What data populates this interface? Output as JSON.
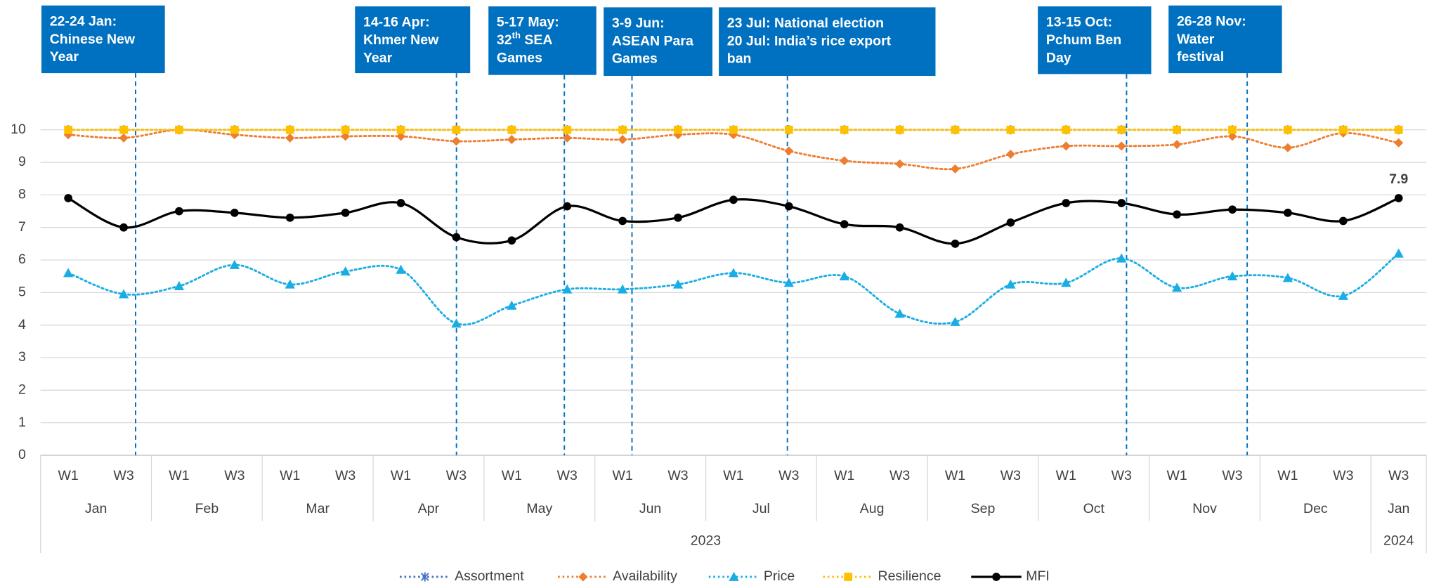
{
  "chart_data": {
    "type": "line",
    "categories": [
      [
        "W1",
        "Jan",
        "2023"
      ],
      [
        "W3",
        "Jan",
        "2023"
      ],
      [
        "W1",
        "Feb",
        "2023"
      ],
      [
        "W3",
        "Feb",
        "2023"
      ],
      [
        "W1",
        "Mar",
        "2023"
      ],
      [
        "W3",
        "Mar",
        "2023"
      ],
      [
        "W1",
        "Apr",
        "2023"
      ],
      [
        "W3",
        "Apr",
        "2023"
      ],
      [
        "W1",
        "May",
        "2023"
      ],
      [
        "W3",
        "May",
        "2023"
      ],
      [
        "W1",
        "Jun",
        "2023"
      ],
      [
        "W3",
        "Jun",
        "2023"
      ],
      [
        "W1",
        "Jul",
        "2023"
      ],
      [
        "W3",
        "Jul",
        "2023"
      ],
      [
        "W1",
        "Aug",
        "2023"
      ],
      [
        "W3",
        "Aug",
        "2023"
      ],
      [
        "W1",
        "Sep",
        "2023"
      ],
      [
        "W3",
        "Sep",
        "2023"
      ],
      [
        "W1",
        "Oct",
        "2023"
      ],
      [
        "W3",
        "Oct",
        "2023"
      ],
      [
        "W1",
        "Nov",
        "2023"
      ],
      [
        "W3",
        "Nov",
        "2023"
      ],
      [
        "W1",
        "Dec",
        "2023"
      ],
      [
        "W3",
        "Dec",
        "2023"
      ],
      [
        "W3",
        "Jan",
        "2024"
      ]
    ],
    "ylim": [
      0,
      10
    ],
    "yticks": [
      0,
      1,
      2,
      3,
      4,
      5,
      6,
      7,
      8,
      9,
      10
    ],
    "grid": true,
    "legend": "bottom",
    "series": [
      {
        "name": "Assortment",
        "color": "#4472c4",
        "marker": "x",
        "dash": "dotted",
        "smooth": false,
        "values": [
          10,
          10,
          10,
          10,
          10,
          10,
          10,
          10,
          10,
          10,
          10,
          10,
          10,
          10,
          10,
          10,
          10,
          10,
          10,
          10,
          10,
          10,
          10,
          10,
          10
        ]
      },
      {
        "name": "Availability",
        "color": "#ed7d31",
        "marker": "diamond",
        "dash": "dotted",
        "smooth": true,
        "values": [
          9.85,
          9.75,
          10,
          9.85,
          9.75,
          9.8,
          9.8,
          9.65,
          9.7,
          9.75,
          9.7,
          9.85,
          9.85,
          9.35,
          9.05,
          8.95,
          8.8,
          9.25,
          9.5,
          9.5,
          9.55,
          9.8,
          9.45,
          9.9,
          9.6
        ]
      },
      {
        "name": "Price",
        "color": "#1aade4",
        "marker": "triangle",
        "dash": "dotted",
        "smooth": true,
        "values": [
          5.6,
          4.95,
          5.2,
          5.85,
          5.25,
          5.65,
          5.7,
          4.05,
          4.6,
          5.1,
          5.1,
          5.25,
          5.6,
          5.3,
          5.5,
          4.35,
          4.1,
          5.25,
          5.3,
          6.05,
          5.15,
          5.5,
          5.45,
          4.9,
          6.2
        ]
      },
      {
        "name": "Resilience",
        "color": "#ffc000",
        "marker": "square",
        "dash": "dotted",
        "smooth": false,
        "values": [
          10,
          10,
          10,
          10,
          10,
          10,
          10,
          10,
          10,
          10,
          10,
          10,
          10,
          10,
          10,
          10,
          10,
          10,
          10,
          10,
          10,
          10,
          10,
          10,
          10
        ]
      },
      {
        "name": "MFI",
        "color": "#000000",
        "marker": "circle",
        "dash": "solid",
        "smooth": true,
        "values": [
          7.9,
          7.0,
          7.5,
          7.45,
          7.3,
          7.45,
          7.75,
          6.7,
          6.6,
          7.65,
          7.2,
          7.3,
          7.85,
          7.65,
          7.1,
          7.0,
          6.5,
          7.15,
          7.75,
          7.75,
          7.4,
          7.55,
          7.45,
          7.2,
          7.9
        ],
        "value_labels": [
          null,
          null,
          null,
          null,
          null,
          null,
          null,
          null,
          null,
          null,
          null,
          null,
          null,
          null,
          null,
          null,
          null,
          null,
          null,
          null,
          null,
          null,
          null,
          null,
          "7.9"
        ]
      }
    ],
    "annotations": [
      {
        "lines": [
          "22-24 Jan:",
          "Chinese New",
          "Year"
        ]
      },
      {
        "lines": [
          "14-16 Apr:",
          "Khmer New",
          "Year"
        ]
      },
      {
        "lines": [
          "5-17 May:",
          [
            "32",
            "th",
            " SEA"
          ],
          "Games"
        ]
      },
      {
        "lines": [
          "3-9 Jun:",
          "ASEAN Para",
          "Games"
        ]
      },
      {
        "lines": [
          "23 Jul: National election",
          "20 Jul: India’s rice export",
          "ban"
        ]
      },
      {
        "lines": [
          "13-15 Oct:",
          "Pchum Ben",
          "Day"
        ]
      },
      {
        "lines": [
          "26-28 Nov:",
          "Water",
          "festival"
        ]
      }
    ]
  }
}
